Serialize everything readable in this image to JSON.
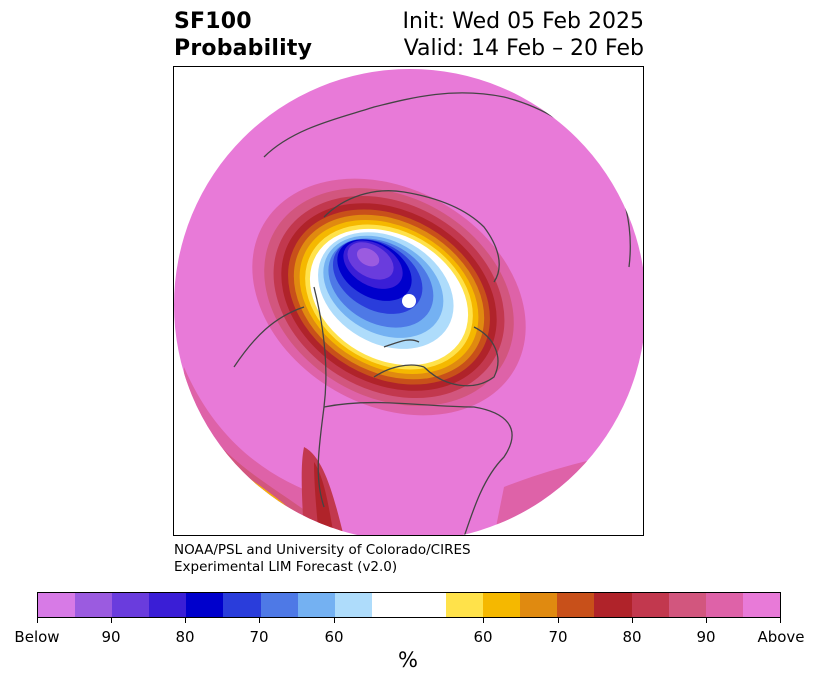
{
  "title": {
    "left_line1": "SF100",
    "left_line2": "Probability",
    "right_line1": "Init: Wed 05 Feb 2025",
    "right_line2": "Valid: 14 Feb – 20 Feb"
  },
  "credit": {
    "line1": "NOAA/PSL and University of Colorado/CIRES",
    "line2": "Experimental LIM Forecast (v2.0)"
  },
  "colorbar": {
    "units": "%",
    "tick_labels": [
      "Below",
      "90",
      "80",
      "70",
      "60",
      "60",
      "70",
      "80",
      "90",
      "Above"
    ],
    "colors": [
      "#d77ae6",
      "#9b5be0",
      "#6a3cdd",
      "#3a1ed6",
      "#0000cc",
      "#2a3ddb",
      "#4e79e6",
      "#74b1f2",
      "#aedcfb",
      "#ffffff",
      "#ffe24a",
      "#f5b800",
      "#e08a10",
      "#c8501a",
      "#b0232a",
      "#c2384e",
      "#d2567e",
      "#de62a8",
      "#e87ad8"
    ]
  },
  "map": {
    "projection": "north-polar-stereographic",
    "background_color": "#e87ad8",
    "coastline_color": "#444444"
  }
}
